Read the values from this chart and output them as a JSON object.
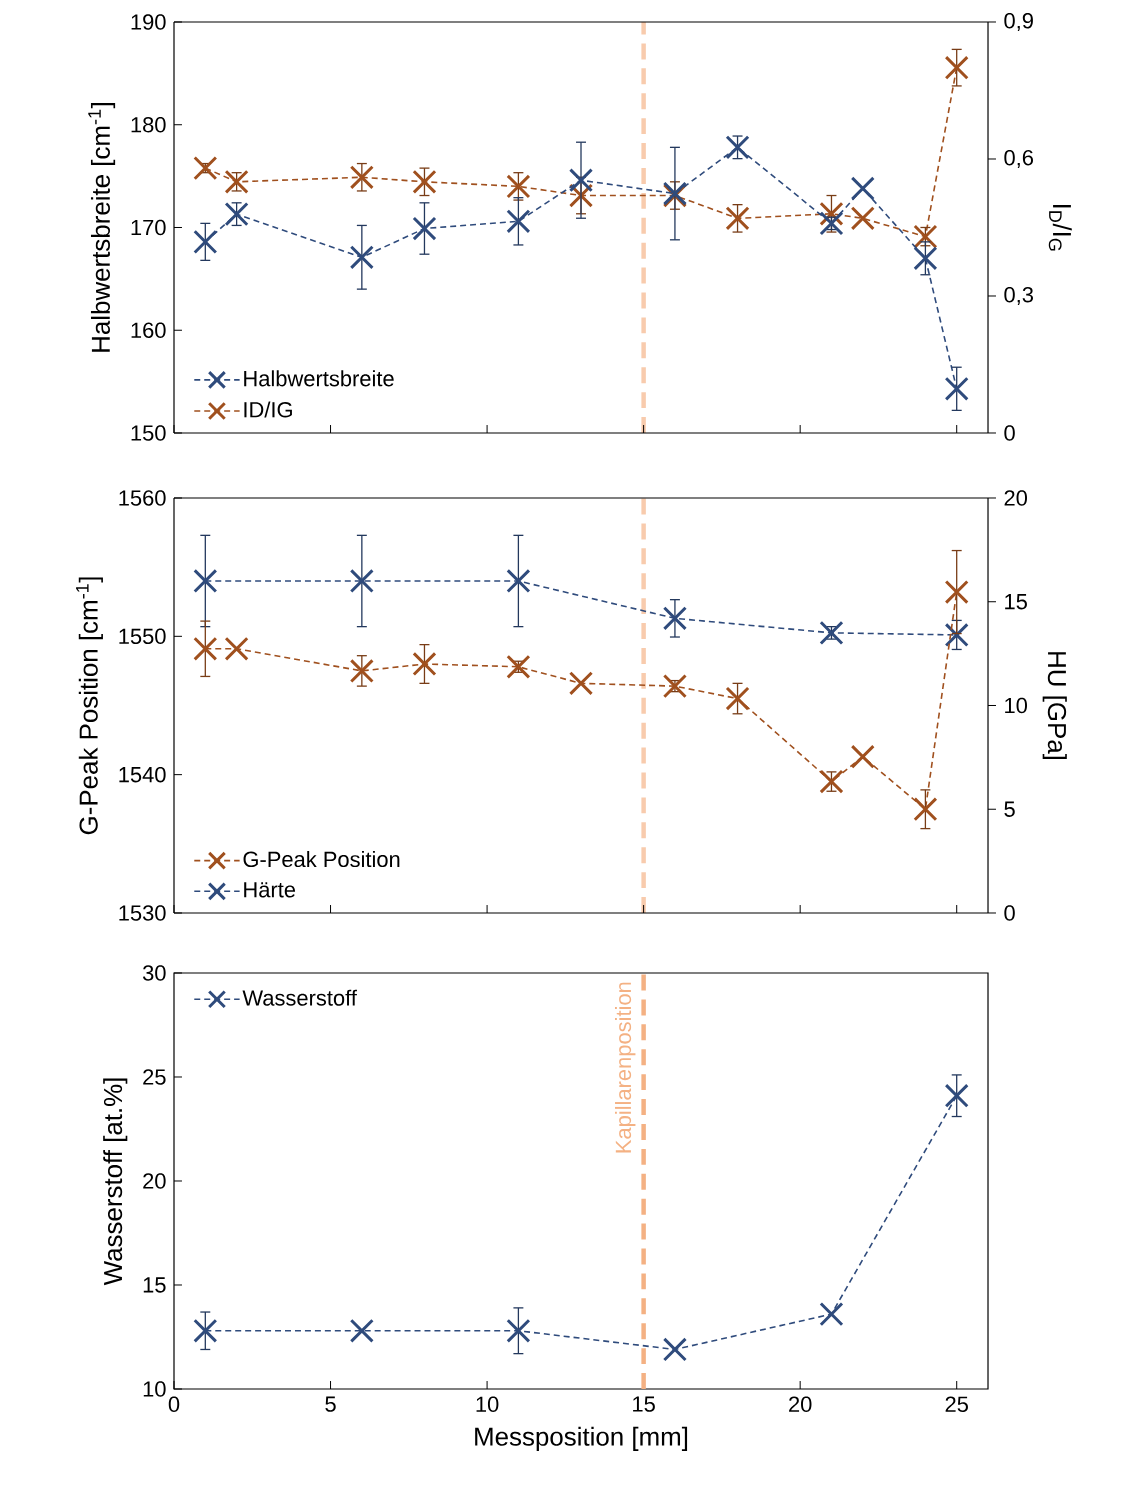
{
  "chart_data": [
    {
      "type": "line",
      "ylabel": "Halbwertsbreite [cm$^{-1}$]",
      "y2label": "I$_{D}$/I$_{G}$",
      "xlim": [
        0,
        26
      ],
      "xticks": [
        0,
        5,
        10,
        15,
        20,
        25
      ],
      "ylim": [
        150,
        190
      ],
      "yticks": [
        150,
        160,
        170,
        180,
        190
      ],
      "y2lim": [
        0,
        0.9
      ],
      "y2ticks": [
        0,
        {
          "value": 0.3,
          "label": "0,3"
        },
        {
          "value": 0.6,
          "label": "0,6"
        },
        {
          "value": 0.9,
          "label": "0,9"
        }
      ],
      "tick_labels": "y",
      "legend": "bottom left",
      "marker": "cross",
      "line_style": "dashed",
      "ref_lines": [
        {
          "axis": "x",
          "value": 15,
          "color": "#f8cbad",
          "line_style": "dashed"
        }
      ],
      "series": [
        {
          "name": "Halbwertsbreite",
          "color": "#2f4b7c",
          "x": [
            1,
            2,
            6,
            8,
            11,
            13,
            16,
            18,
            21,
            22,
            24,
            25
          ],
          "values": [
            168.6,
            171.3,
            167.1,
            169.9,
            170.6,
            174.6,
            173.3,
            177.8,
            170.4,
            173.8,
            167.0,
            154.3
          ],
          "errors": [
            1.8,
            1.1,
            3.1,
            2.5,
            2.3,
            3.7,
            4.5,
            1.1,
            0.6,
            null,
            1.6,
            2.1
          ]
        },
        {
          "name": "ID/IG",
          "color": "#a0501e",
          "axis": "y2",
          "x": [
            1,
            2,
            6,
            8,
            11,
            13,
            16,
            18,
            21,
            22,
            24,
            25
          ],
          "values": [
            0.58,
            0.55,
            0.56,
            0.55,
            0.54,
            0.52,
            0.52,
            0.47,
            0.48,
            0.47,
            0.43,
            0.8
          ],
          "errors": [
            0.01,
            0.02,
            0.03,
            0.03,
            0.03,
            0.04,
            0.03,
            0.03,
            0.04,
            null,
            0.02,
            0.04
          ]
        }
      ]
    },
    {
      "type": "line",
      "ylabel": "G-Peak Position [cm$^{-1}$]",
      "y2label": "HU [GPa]",
      "xlim": [
        0,
        26
      ],
      "xticks": [
        0,
        5,
        10,
        15,
        20,
        25
      ],
      "ylim": [
        1530,
        1560
      ],
      "yticks": [
        1530,
        1540,
        1550,
        1560
      ],
      "y2lim": [
        0,
        20
      ],
      "y2ticks": [
        0,
        5,
        10,
        15,
        20
      ],
      "tick_labels": "y",
      "legend": "bottom left",
      "marker": "cross",
      "line_style": "dashed",
      "ref_lines": [
        {
          "axis": "x",
          "value": 15,
          "color": "#f8cbad",
          "line_style": "dashed"
        }
      ],
      "series": [
        {
          "name": "G-Peak Position",
          "color": "#a0501e",
          "x": [
            1,
            2,
            6,
            8,
            11,
            13,
            16,
            18,
            21,
            22,
            24,
            25
          ],
          "values": [
            1549.1,
            1549.1,
            1547.5,
            1548.0,
            1547.8,
            1546.6,
            1546.4,
            1545.5,
            1539.5,
            1541.3,
            1537.5,
            1553.2
          ],
          "errors": [
            2.0,
            null,
            1.1,
            1.4,
            0.4,
            null,
            0.4,
            1.1,
            0.7,
            null,
            1.4,
            3.0
          ]
        },
        {
          "name": "Härte",
          "color": "#2f4b7c",
          "axis": "y2",
          "x": [
            1,
            6,
            11,
            16,
            21,
            25
          ],
          "values": [
            16.0,
            16.0,
            16.0,
            14.2,
            13.5,
            13.4
          ],
          "errors": [
            2.2,
            2.2,
            2.2,
            0.9,
            0.3,
            0.7
          ]
        }
      ]
    },
    {
      "type": "line",
      "xlabel": "Messposition [mm]",
      "ylabel": "Wasserstoff [at.%]",
      "xlim": [
        0,
        26
      ],
      "xticks": [
        0,
        5,
        10,
        15,
        20,
        25
      ],
      "ylim": [
        10,
        30
      ],
      "yticks": [
        10,
        15,
        20,
        25,
        30
      ],
      "legend": "top left",
      "marker": "cross",
      "line_style": "dashed",
      "ref_lines": [
        {
          "axis": "x",
          "value": 15,
          "label": "Kapillarenposition",
          "color": "#f4b183",
          "line_style": "dashed"
        }
      ],
      "series": [
        {
          "name": "Wasserstoff",
          "color": "#2f4b7c",
          "x": [
            1,
            6,
            11,
            16,
            21,
            25
          ],
          "values": [
            12.8,
            12.8,
            12.8,
            11.9,
            13.6,
            24.1
          ],
          "errors": [
            0.9,
            null,
            1.1,
            null,
            null,
            1.0
          ]
        }
      ]
    }
  ]
}
